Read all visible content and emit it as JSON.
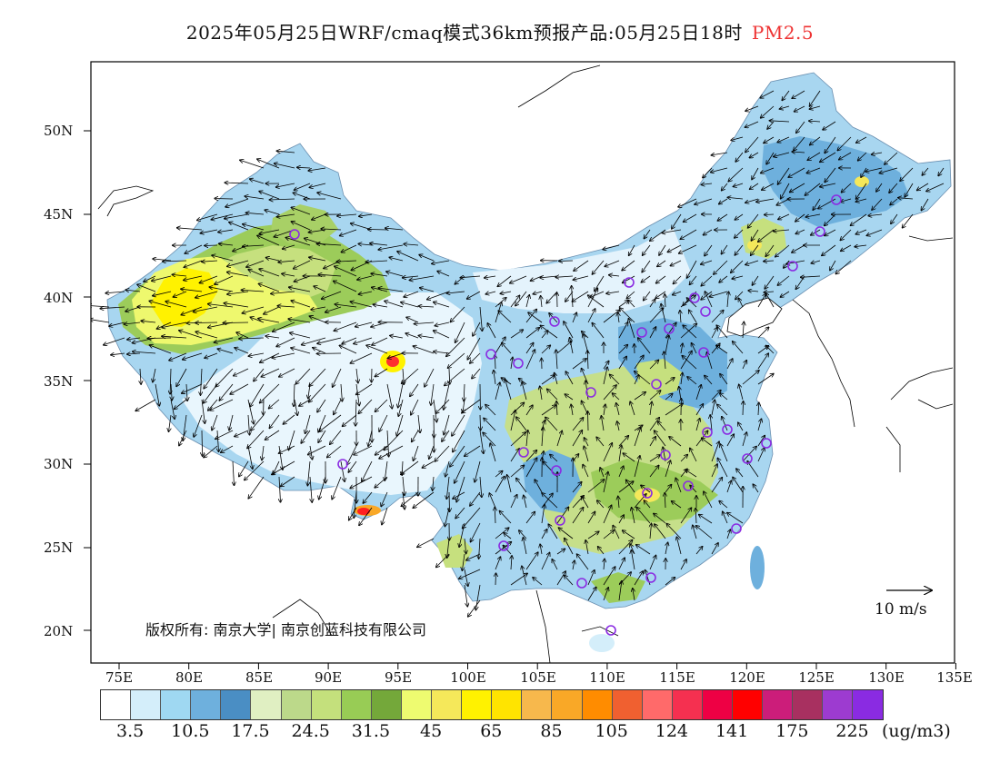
{
  "title": {
    "main": "2025年05月25日WRF/cmaq模式36km预报产品:05月25日18时",
    "species": "PM2.5"
  },
  "axes": {
    "lat_labels": [
      "50N",
      "45N",
      "40N",
      "35N",
      "30N",
      "25N",
      "20N"
    ],
    "lon_labels": [
      "75E",
      "80E",
      "85E",
      "90E",
      "95E",
      "100E",
      "105E",
      "110E",
      "115E",
      "120E",
      "125E",
      "130E",
      "135E"
    ]
  },
  "copyright": "版权所有: 南京大学| 南京创蓝科技有限公司",
  "wind_scale": {
    "label": "10 m/s",
    "speed_ms": 10
  },
  "legend": {
    "unit": "(ug/m3)",
    "labels": [
      "3.5",
      "10.5",
      "17.5",
      "24.5",
      "31.5",
      "45",
      "65",
      "85",
      "105",
      "124",
      "141",
      "175",
      "225"
    ],
    "colors": [
      "#ffffff",
      "#d4eefa",
      "#9fd8f2",
      "#6eb0dd",
      "#4a8ec4",
      "#e0efc2",
      "#bcd98a",
      "#c4e07c",
      "#98cc55",
      "#74a83a",
      "#eefb70",
      "#f5e85a",
      "#fff200",
      "#ffe400",
      "#f7b84c",
      "#f9a827",
      "#ff8c00",
      "#f06030",
      "#ff6a6a",
      "#f53050",
      "#ee0044",
      "#ff0000",
      "#cc1d7a",
      "#a83060",
      "#9d3bd0",
      "#8a2be2"
    ]
  },
  "colors": {
    "frame": "#000000",
    "title_species": "#e33333",
    "city_marker": "#8a2be2"
  }
}
